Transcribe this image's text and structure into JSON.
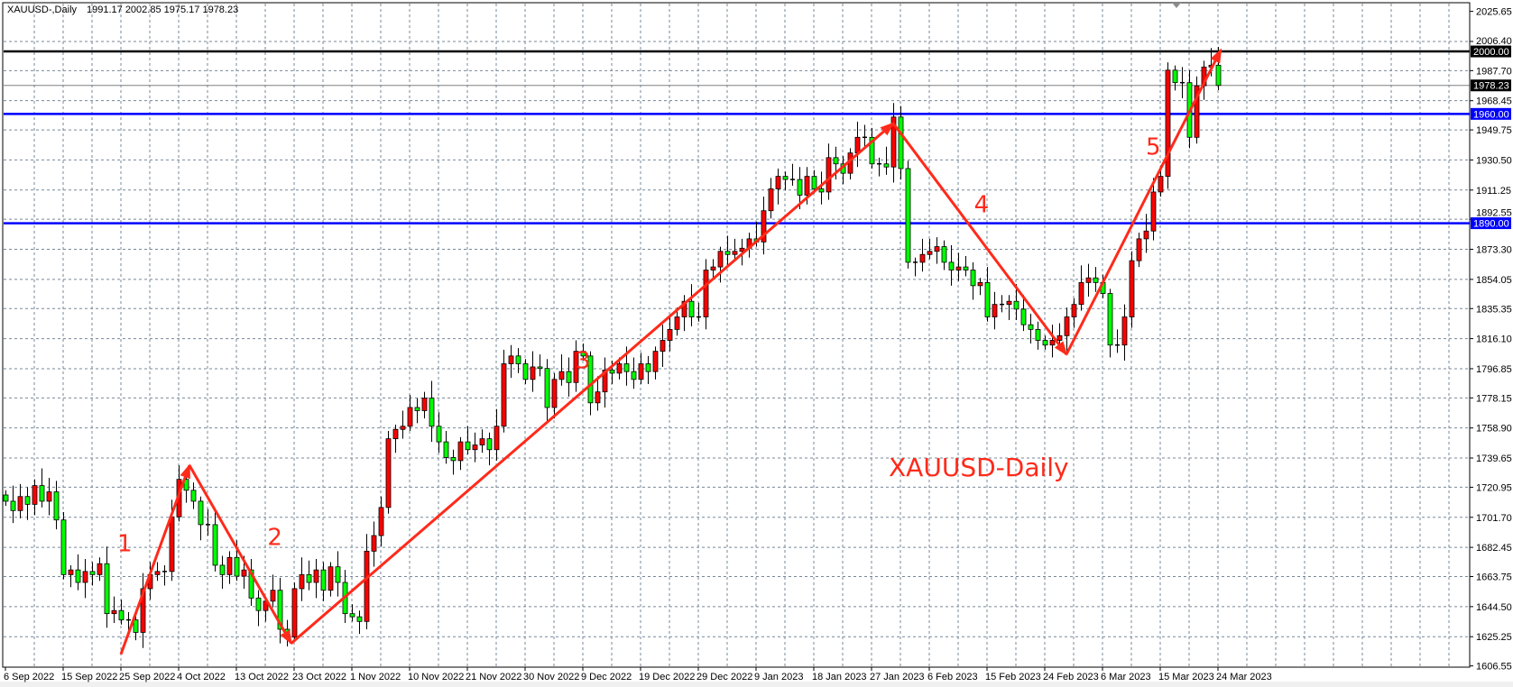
{
  "header": {
    "symbol": "XAUUSD-,Daily",
    "ohlc": "1991.17 2002.85 1975.17 1978.23"
  },
  "colors": {
    "bull_candle": "#ff0000",
    "bear_candle": "#00ff00",
    "grid": "#778899",
    "support_resistance": "#0000ff",
    "key_level": "#000000",
    "annotation": "#ff2a1a"
  },
  "chart_data": {
    "type": "candlestick",
    "title": "XAUUSD-Daily",
    "ylim": [
      1606.55,
      2025.65
    ],
    "grid": true,
    "y_ticks": [
      "2025.65",
      "2006.40",
      "1987.70",
      "1968.45",
      "1949.75",
      "1930.50",
      "1911.25",
      "1892.55",
      "1873.30",
      "1854.05",
      "1835.35",
      "1816.10",
      "1796.85",
      "1778.15",
      "1758.90",
      "1739.65",
      "1720.95",
      "1701.70",
      "1682.45",
      "1663.75",
      "1644.50",
      "1625.25",
      "1606.55"
    ],
    "x_ticks": [
      "6 Sep 2022",
      "15 Sep 2022",
      "25 Sep 2022",
      "4 Oct 2022",
      "13 Oct 2022",
      "23 Oct 2022",
      "1 Nov 2022",
      "10 Nov 2022",
      "21 Nov 2022",
      "30 Nov 2022",
      "9 Dec 2022",
      "19 Dec 2022",
      "29 Dec 2022",
      "9 Jan 2023",
      "18 Jan 2023",
      "27 Jan 2023",
      "6 Feb 2023",
      "15 Feb 2023",
      "24 Feb 2023",
      "6 Mar 2023",
      "15 Mar 2023",
      "24 Mar 2023"
    ],
    "first_open": 1716,
    "closes": [
      1712,
      1706,
      1715,
      1710,
      1722,
      1712,
      1718,
      1700,
      1665,
      1668,
      1660,
      1667,
      1665,
      1672,
      1640,
      1642,
      1636,
      1636,
      1628,
      1656,
      1665,
      1667,
      1667,
      1702,
      1726,
      1719,
      1712,
      1697,
      1697,
      1671,
      1665,
      1676,
      1664,
      1668,
      1650,
      1642,
      1648,
      1655,
      1630,
      1625,
      1656,
      1665,
      1660,
      1668,
      1655,
      1670,
      1660,
      1640,
      1638,
      1635,
      1680,
      1690,
      1708,
      1752,
      1758,
      1760,
      1772,
      1770,
      1778,
      1760,
      1750,
      1740,
      1738,
      1750,
      1745,
      1748,
      1752,
      1745,
      1760,
      1800,
      1805,
      1800,
      1790,
      1798,
      1797,
      1772,
      1790,
      1795,
      1788,
      1808,
      1805,
      1775,
      1782,
      1796,
      1794,
      1800,
      1795,
      1790,
      1800,
      1795,
      1808,
      1815,
      1822,
      1830,
      1840,
      1830,
      1830,
      1860,
      1862,
      1872,
      1870,
      1872,
      1874,
      1880,
      1878,
      1898,
      1912,
      1920,
      1918,
      1918,
      1908,
      1920,
      1912,
      1910,
      1932,
      1928,
      1922,
      1935,
      1945,
      1945,
      1928,
      1928,
      1926,
      1958,
      1925,
      1865,
      1865,
      1870,
      1872,
      1875,
      1865,
      1860,
      1862,
      1860,
      1850,
      1852,
      1830,
      1838,
      1838,
      1840,
      1835,
      1825,
      1822,
      1815,
      1812,
      1815,
      1818,
      1830,
      1838,
      1852,
      1855,
      1852,
      1845,
      1812,
      1812,
      1830,
      1866,
      1880,
      1885,
      1910,
      1920,
      1988,
      1980,
      1980,
      1945,
      1978,
      1990,
      1991.17,
      1978.23
    ],
    "last_bar": {
      "open": 1991.17,
      "high": 2002.85,
      "low": 1975.17,
      "close": 1978.23
    },
    "horizontal_levels": [
      {
        "price": 2000.0,
        "label": "2000.00",
        "color": "#000000"
      },
      {
        "price": 1960.0,
        "label": "1960.00",
        "color": "#0000ff"
      },
      {
        "price": 1890.0,
        "label": "1890.00",
        "color": "#0000ff"
      }
    ],
    "current_price": {
      "price": 1978.23,
      "label": "1978.23"
    },
    "wave_path": [
      {
        "bar": 16,
        "price": 1614
      },
      {
        "bar": 25.5,
        "price": 1735
      },
      {
        "bar": 39.6,
        "price": 1621
      },
      {
        "bar": 123,
        "price": 1954
      },
      {
        "bar": 147,
        "price": 1806
      },
      {
        "bar": 168.4,
        "price": 2001
      }
    ],
    "wave_labels": [
      {
        "text": "1",
        "bar": 15.5,
        "price": 1680
      },
      {
        "text": "2",
        "bar": 36.3,
        "price": 1684
      },
      {
        "text": "3",
        "bar": 79,
        "price": 1797
      },
      {
        "text": "4",
        "bar": 134.2,
        "price": 1897
      },
      {
        "text": "5",
        "bar": 158,
        "price": 1934
      }
    ]
  }
}
